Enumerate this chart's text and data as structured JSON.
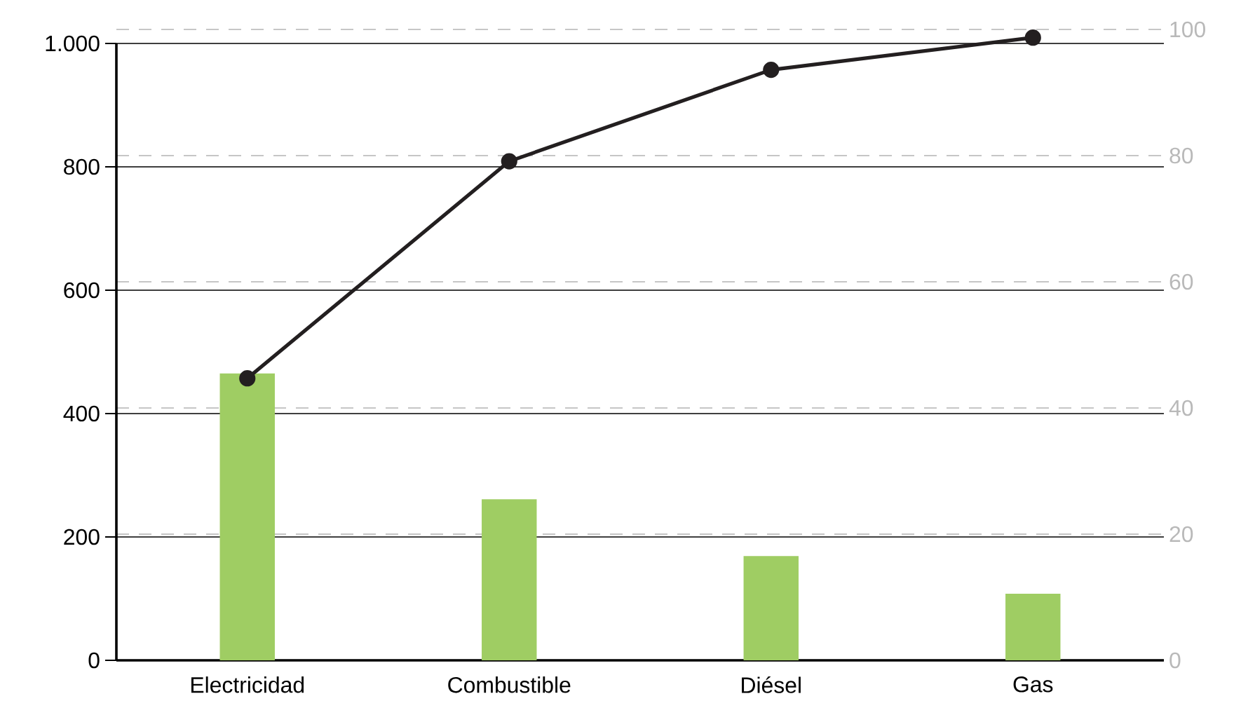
{
  "chart_data": {
    "type": "bar",
    "categories": [
      "Electricidad",
      "Combustible",
      "Diésel",
      "Gas"
    ],
    "series": [
      {
        "color": "#9fcd63",
        "values": [
          465,
          261,
          169,
          108
        ]
      },
      {
        "type": "line",
        "axis": "y2",
        "color": "#231f20",
        "values": [
          44.7,
          79.1,
          93.6,
          98.7
        ]
      }
    ],
    "ylim": [
      0,
      1000
    ],
    "yticks": [
      0,
      200,
      400,
      600,
      800,
      {
        "value": 1000,
        "label": "1.000"
      }
    ],
    "y2lim": [
      0,
      100
    ],
    "y2ticks": [
      0,
      20,
      40,
      60,
      80,
      100
    ],
    "grid": "y",
    "marker": "circle"
  }
}
